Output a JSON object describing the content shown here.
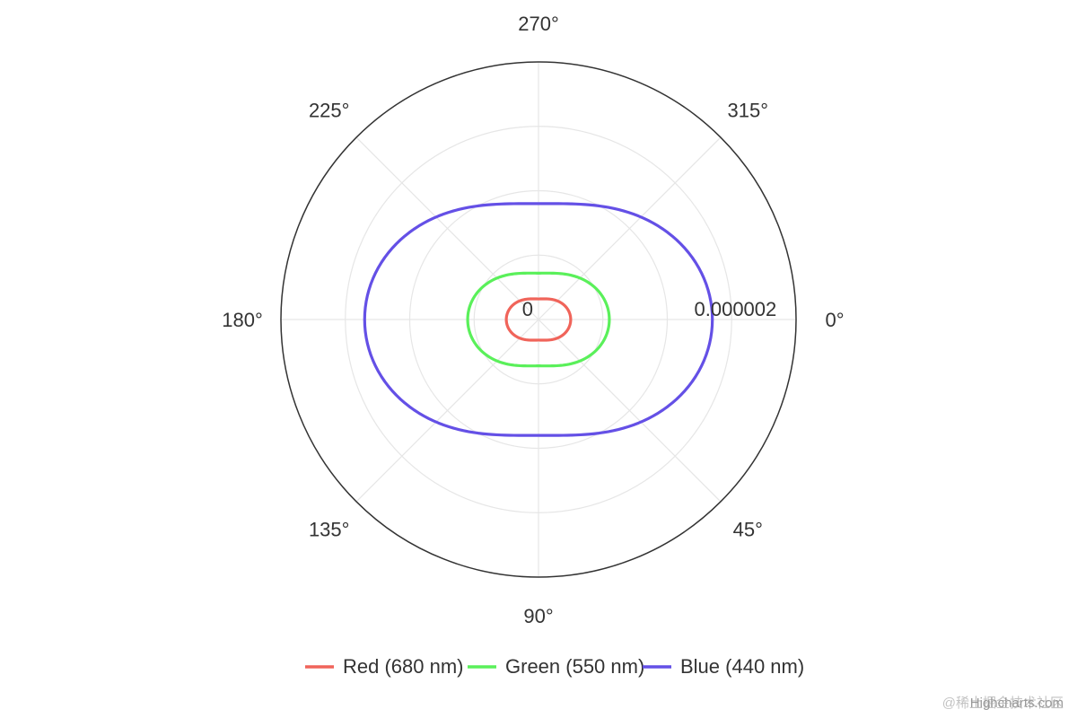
{
  "chart_data": {
    "type": "line",
    "subtype": "polar",
    "angular_axis": {
      "unit": "°",
      "ticks": [
        0,
        45,
        90,
        135,
        180,
        225,
        270,
        315
      ],
      "tick_labels": [
        "0°",
        "45°",
        "90°",
        "135°",
        "180°",
        "225°",
        "270°",
        "315°"
      ],
      "direction": "clockwise",
      "zero_at": "right"
    },
    "radial_axis": {
      "min": 0,
      "max": 4e-06,
      "tick_labels": [
        "0",
        "0.000002"
      ],
      "tick_values": [
        0,
        2e-06
      ]
    },
    "grid": true,
    "legend_position": "bottom",
    "series": [
      {
        "name": "Red (680 nm)",
        "color": "#f0645a",
        "a": 3.2e-07,
        "b": 1.8e-07
      },
      {
        "name": "Green (550 nm)",
        "color": "#5af05a",
        "a": 7.2e-07,
        "b": 3.8e-07
      },
      {
        "name": "Blue (440 nm)",
        "color": "#6450e6",
        "a": 1.8e-06,
        "b": 9e-07
      }
    ],
    "series_model": "r(θ) = a + b·cos²(θ)"
  },
  "credits": "Highcharts.com",
  "watermark": "@稀土掘金技术社区"
}
